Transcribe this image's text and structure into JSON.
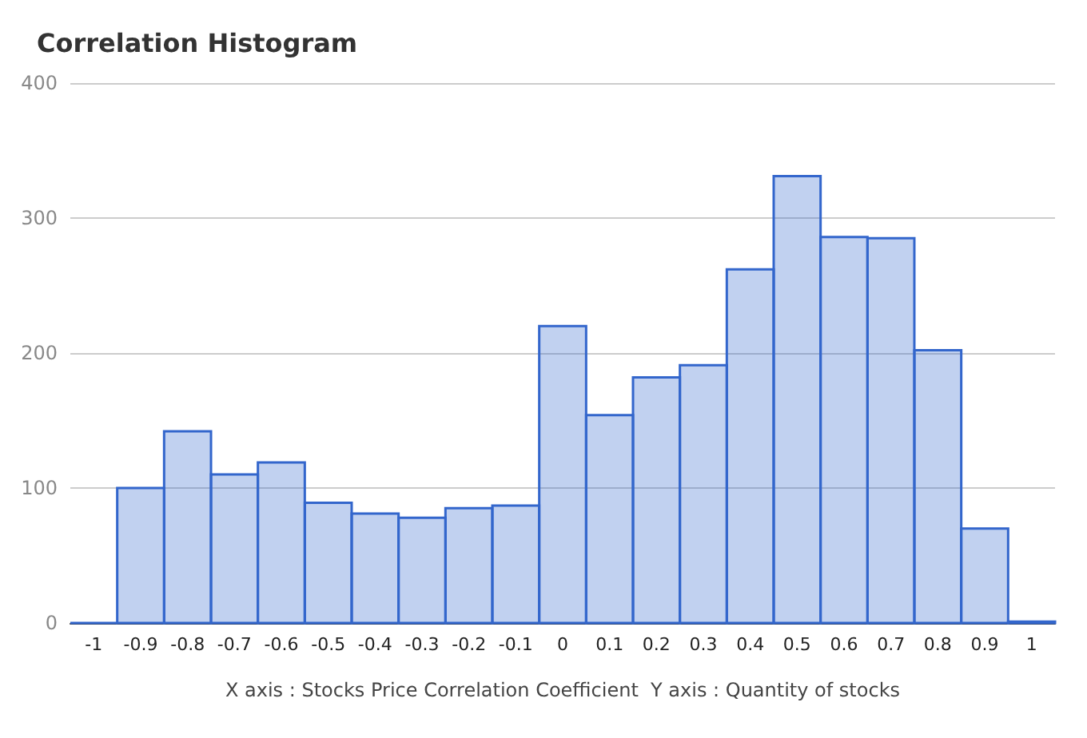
{
  "chart_data": {
    "type": "histogram",
    "title": "Correlation Histogram",
    "xlabel": "X axis : Stocks Price Correlation Coefficient  Y axis : Quantity of stocks",
    "bins": [
      -1.05,
      -0.95,
      -0.85,
      -0.75,
      -0.65,
      -0.55,
      -0.45,
      -0.35,
      -0.25,
      -0.15,
      -0.05,
      0.05,
      0.15,
      0.25,
      0.35,
      0.45,
      0.55,
      0.65,
      0.75,
      0.85,
      0.95,
      1.05
    ],
    "values": [
      0,
      100,
      142,
      110,
      119,
      89,
      81,
      78,
      85,
      87,
      220,
      154,
      182,
      191,
      262,
      331,
      286,
      285,
      202,
      70,
      1
    ],
    "color": "#3366cc",
    "xlim": [
      -1.05,
      1.05
    ],
    "xticks": [
      -1,
      -0.9,
      -0.8,
      -0.7,
      -0.6,
      -0.5,
      -0.4,
      -0.3,
      -0.2,
      -0.1,
      0,
      0.1,
      0.2,
      0.3,
      0.4,
      0.5,
      0.6,
      0.7,
      0.8,
      0.9,
      1
    ],
    "ylim": [
      0,
      400
    ],
    "yticks": [
      0,
      100,
      200,
      300,
      400
    ],
    "grid": "y"
  }
}
